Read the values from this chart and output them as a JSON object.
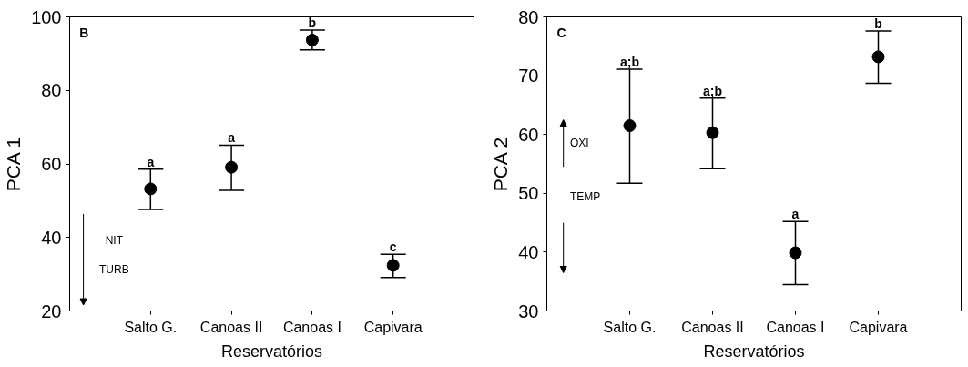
{
  "chart_data": [
    {
      "type": "scatter",
      "categories": [
        "Salto G.",
        "Canoas II",
        "Canoas I",
        "Capivara"
      ],
      "color": "#000000",
      "marker": "circle",
      "grid": false,
      "values": [
        53.2,
        59.1,
        93.7,
        32.4
      ],
      "errors": [
        [
          47.6,
          58.6
        ],
        [
          52.8,
          65.1
        ],
        [
          91.0,
          96.4
        ],
        [
          29.1,
          35.4
        ]
      ],
      "xlabel": "Reservatórios",
      "ylabel": "PCA 1",
      "ylim": [
        20,
        100
      ],
      "yticks": [
        20,
        40,
        60,
        80,
        100
      ],
      "annotations": [
        "B",
        "NIT",
        "TURB",
        {
          "text": "a",
          "x": "Salto G.",
          "y": 58.6
        },
        {
          "text": "a",
          "x": "Canoas II",
          "y": 65.1
        },
        {
          "text": "b",
          "x": "Canoas I",
          "y": 96.4
        },
        {
          "text": "c",
          "x": "Capivara",
          "y": 35.4
        }
      ]
    },
    {
      "type": "scatter",
      "categories": [
        "Salto G.",
        "Canoas II",
        "Canoas I",
        "Capivara"
      ],
      "color": "#000000",
      "marker": "circle",
      "grid": false,
      "values": [
        61.5,
        60.3,
        39.9,
        73.2
      ],
      "errors": [
        [
          51.7,
          71.1
        ],
        [
          54.2,
          66.2
        ],
        [
          34.5,
          45.2
        ],
        [
          68.7,
          77.6
        ]
      ],
      "xlabel": "Reservatórios",
      "ylabel": "PCA 2",
      "ylim": [
        30,
        80
      ],
      "yticks": [
        30,
        40,
        50,
        60,
        70,
        80
      ],
      "annotations": [
        "C",
        "OXI",
        "TEMP",
        {
          "text": "a;b",
          "x": "Salto G.",
          "y": 71.1
        },
        {
          "text": "a;b",
          "x": "Canoas II",
          "y": 66.2
        },
        {
          "text": "a",
          "x": "Canoas I",
          "y": 45.2
        },
        {
          "text": "b",
          "x": "Capivara",
          "y": 77.6
        }
      ]
    }
  ]
}
